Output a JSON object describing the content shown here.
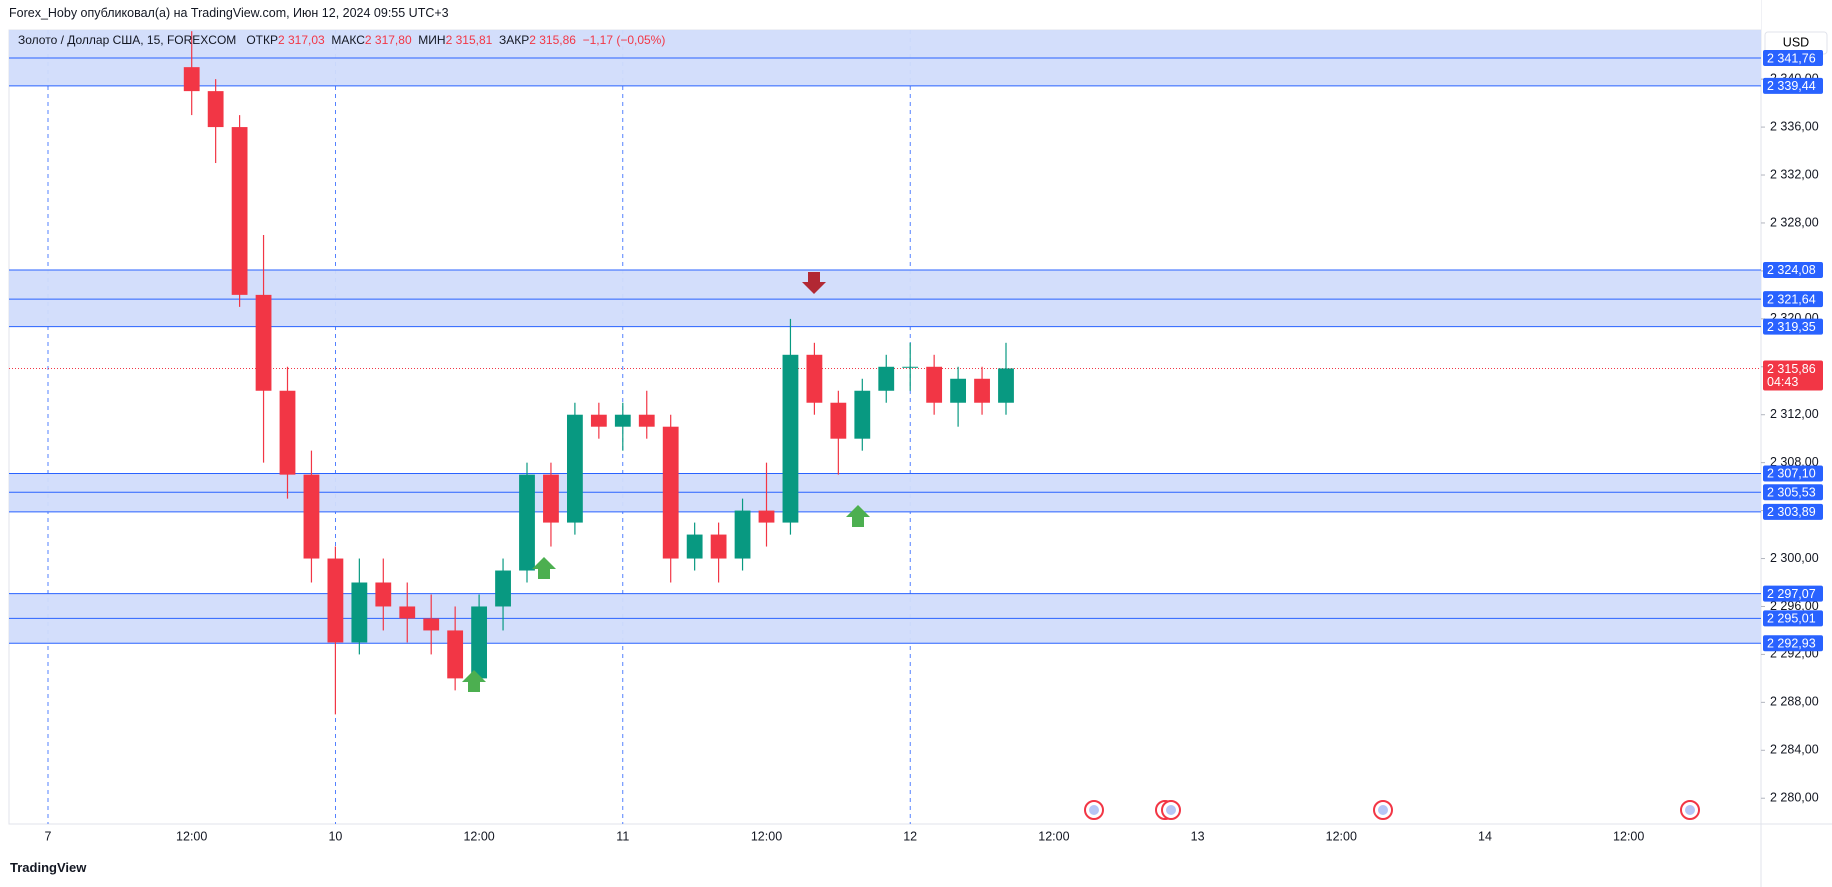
{
  "header": {
    "text": "Forex_Hoby опубликовал(а) на TradingView.com, Июн 12, 2024 09:55 UTC+3"
  },
  "legend": {
    "symbol": "Золото / Доллар США, 15, FOREXCOM",
    "open_label": "ОТКР",
    "open": "2 317,03",
    "high_label": "МАКС",
    "high": "2 317,80",
    "low_label": "МИН",
    "low": "2 315,81",
    "close_label": "ЗАКР",
    "close": "2 315,86",
    "change": "−1,17 (−0,05%)"
  },
  "currency": "USD",
  "logo": "TradingView",
  "chart_data": {
    "type": "candlestick",
    "categories": [
      "7",
      null,
      null,
      null,
      null,
      null,
      "12:00",
      null,
      null,
      null,
      null,
      null,
      "10",
      null,
      null,
      null,
      null,
      null,
      "12:00",
      null,
      null,
      null,
      null,
      null,
      "11",
      null,
      null,
      null,
      null,
      null,
      "12:00",
      null,
      null,
      null,
      null,
      null,
      "12",
      null,
      null,
      null,
      null,
      null,
      "12:00",
      null,
      null,
      null,
      null,
      null,
      "13",
      null,
      null,
      null,
      null,
      null,
      "12:00",
      null,
      null,
      null,
      null,
      null,
      "14",
      null,
      null,
      null,
      null,
      null,
      "12:00",
      null,
      null,
      null,
      null,
      null
    ],
    "open": [
      null,
      null,
      null,
      null,
      null,
      null,
      2341,
      2339,
      2336,
      2322,
      2314,
      2307,
      2300,
      2293,
      2298,
      2296,
      2295,
      2294,
      2290,
      2296,
      2299,
      2307,
      2303,
      2312,
      2311,
      2312,
      2311,
      2300,
      2302,
      2300,
      2304,
      2303,
      2317,
      2313,
      2310,
      2314,
      2316,
      2316,
      2313,
      2315,
      2313,
      null,
      null,
      null,
      null,
      null,
      null,
      null,
      null,
      null,
      null,
      null,
      null,
      null,
      null,
      null,
      null,
      null,
      null,
      null,
      null,
      null,
      null,
      null,
      null,
      null,
      null,
      null,
      null,
      null,
      null,
      null
    ],
    "high": [
      null,
      null,
      null,
      null,
      null,
      null,
      2344,
      2340,
      2337,
      2327,
      2316,
      2309,
      2301,
      2300,
      2300,
      2298,
      2297,
      2296,
      2297,
      2300,
      2308,
      2308,
      2313,
      2313,
      2313,
      2314,
      2312,
      2303,
      2303,
      2305,
      2308,
      2320,
      2318,
      2314,
      2315,
      2317,
      2318,
      2317,
      2316,
      2316,
      2318,
      null,
      null,
      null,
      null,
      null,
      null,
      null,
      null,
      null,
      null,
      null,
      null,
      null,
      null,
      null,
      null,
      null,
      null,
      null,
      null,
      null,
      null,
      null,
      null,
      null,
      null,
      null,
      null,
      null,
      null,
      null
    ],
    "low": [
      null,
      null,
      null,
      null,
      null,
      null,
      2337,
      2333,
      2321,
      2308,
      2305,
      2298,
      2287,
      2292,
      2294,
      2293,
      2292,
      2289,
      2289,
      2294,
      2298,
      2301,
      2302,
      2310,
      2309,
      2310,
      2298,
      2299,
      2298,
      2299,
      2301,
      2302,
      2312,
      2307,
      2309,
      2313,
      2314,
      2312,
      2311,
      2312,
      2312,
      null,
      null,
      null,
      null,
      null,
      null,
      null,
      null,
      null,
      null,
      null,
      null,
      null,
      null,
      null,
      null,
      null,
      null,
      null,
      null,
      null,
      null,
      null,
      null,
      null,
      null,
      null,
      null,
      null,
      null,
      null
    ],
    "close": [
      null,
      null,
      null,
      null,
      null,
      null,
      2339,
      2336,
      2322,
      2314,
      2307,
      2300,
      2293,
      2298,
      2296,
      2295,
      2294,
      2290,
      2296,
      2299,
      2307,
      2303,
      2312,
      2311,
      2312,
      2311,
      2300,
      2302,
      2300,
      2304,
      2303,
      2317,
      2313,
      2310,
      2314,
      2316,
      2316,
      2313,
      2315,
      2313,
      2315.86,
      null,
      null,
      null,
      null,
      null,
      null,
      null,
      null,
      null,
      null,
      null,
      null,
      null,
      null,
      null,
      null,
      null,
      null,
      null,
      null,
      null,
      null,
      null,
      null,
      null,
      null,
      null,
      null,
      null,
      null,
      null
    ],
    "up_color": "#089981",
    "down_color": "#f23645",
    "ylim": [
      2277.85,
      2344.1
    ],
    "yticks": [
      {
        "value": 2280,
        "label": "2 280,00"
      },
      {
        "value": 2284,
        "label": "2 284,00"
      },
      {
        "value": 2288,
        "label": "2 288,00"
      },
      {
        "value": 2292,
        "label": "2 292,00"
      },
      {
        "value": 2296,
        "label": "2 296,00"
      },
      {
        "value": 2300,
        "label": "2 300,00"
      },
      {
        "value": 2304,
        "label": "2 304,00"
      },
      {
        "value": 2308,
        "label": "2 308,00"
      },
      {
        "value": 2312,
        "label": "2 312,00"
      },
      {
        "value": 2316,
        "label": "2 316,00"
      },
      {
        "value": 2320,
        "label": "2 320,00"
      },
      {
        "value": 2324,
        "label": "2 324,00"
      },
      {
        "value": 2328,
        "label": "2 328,00"
      },
      {
        "value": 2332,
        "label": "2 332,00"
      },
      {
        "value": 2336,
        "label": "2 336,00"
      },
      {
        "value": 2340,
        "label": "2 340,00"
      }
    ],
    "zones": [
      [
        2339.44,
        2344.1
      ],
      [
        2319.35,
        2324.08
      ],
      [
        2303.89,
        2307.1
      ],
      [
        2292.93,
        2297.07
      ]
    ],
    "zone_color": "#d1dcfb",
    "level_color": "#2962ff",
    "levels": [
      {
        "value": 2341.76,
        "label": "2 341,76"
      },
      {
        "value": 2339.44,
        "label": "2 339,44"
      },
      {
        "value": 2324.08,
        "label": "2 324,08"
      },
      {
        "value": 2321.64,
        "label": "2 321,64"
      },
      {
        "value": 2319.35,
        "label": "2 319,35"
      },
      {
        "value": 2307.1,
        "label": "2 307,10"
      },
      {
        "value": 2305.53,
        "label": "2 305,53"
      },
      {
        "value": 2303.89,
        "label": "2 303,89"
      },
      {
        "value": 2297.07,
        "label": "2 297,07"
      },
      {
        "value": 2295.01,
        "label": "2 295,01"
      },
      {
        "value": 2292.93,
        "label": "2 292,93"
      }
    ],
    "last_price": {
      "value": 2315.86,
      "label": "2 315,86",
      "countdown": "04:43"
    }
  }
}
